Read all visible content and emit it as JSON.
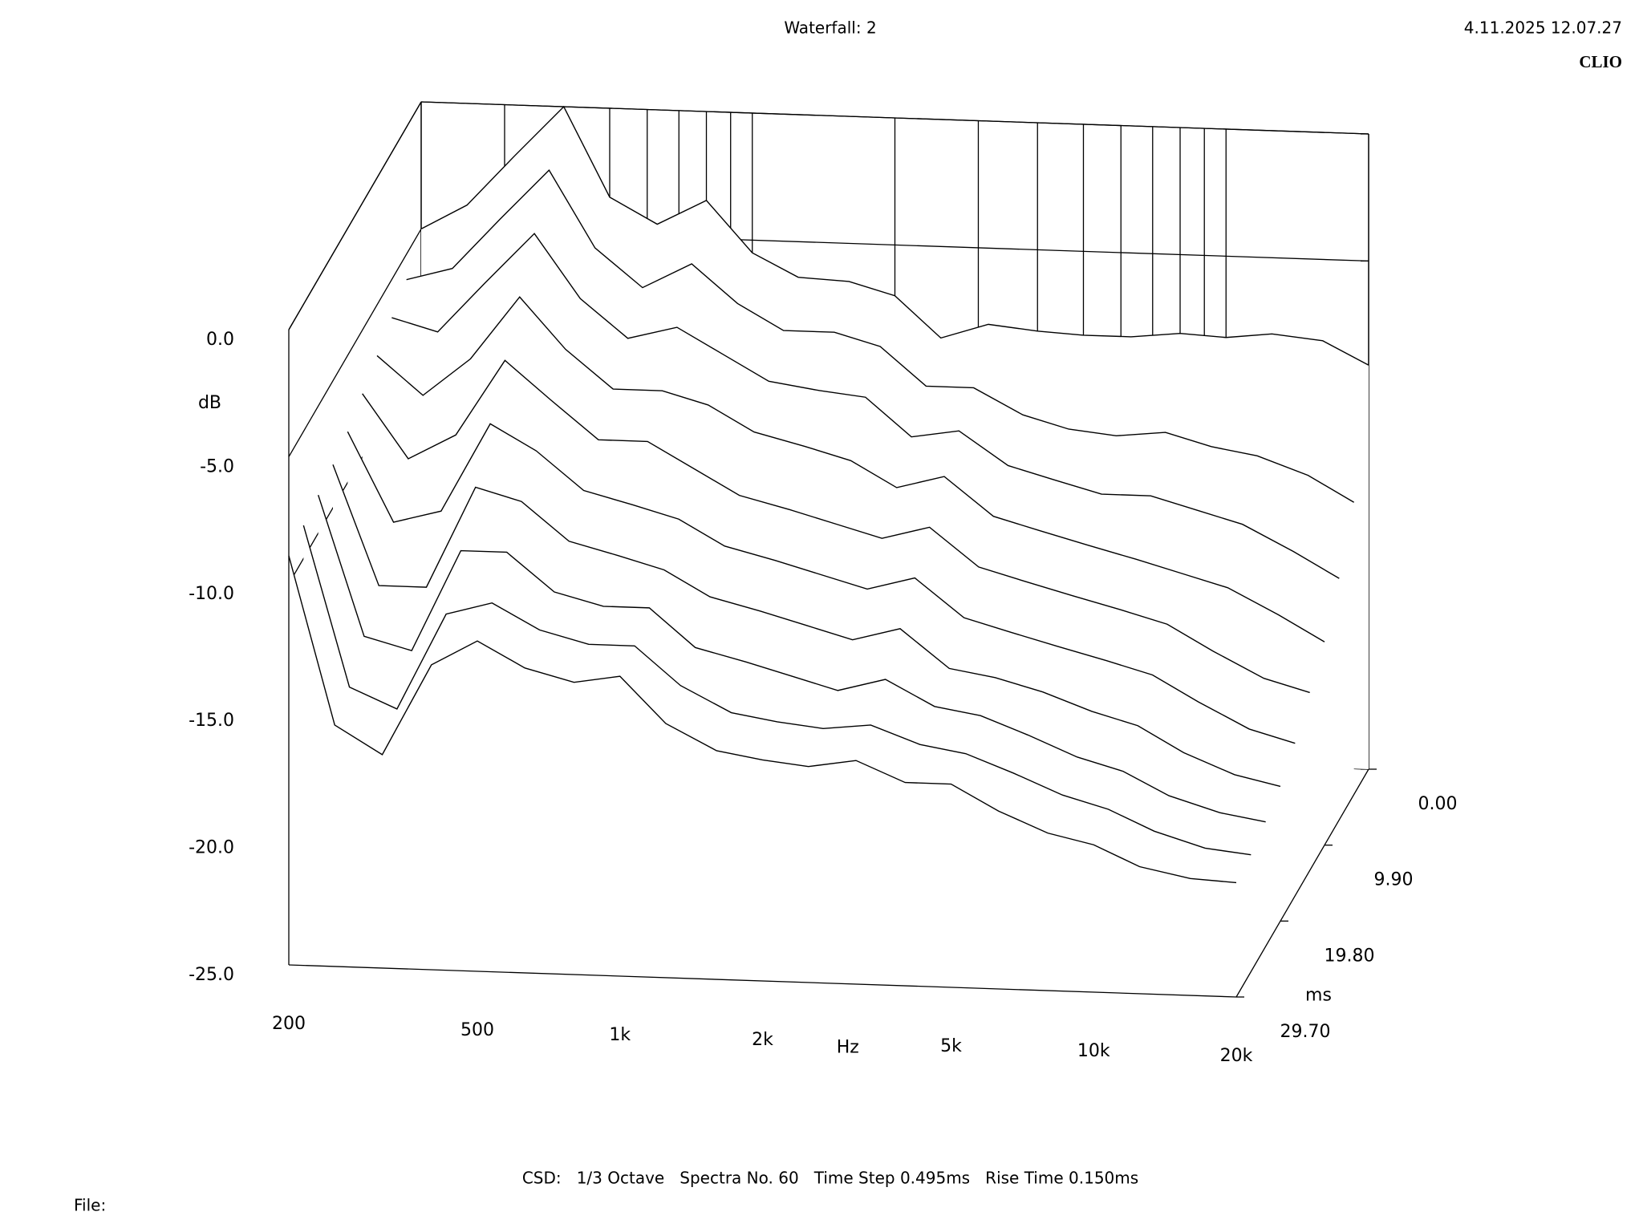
{
  "chart_data": {
    "type": "waterfall",
    "title": "Waterfall: 2",
    "timestamp": "4.11.2025 12.07.27",
    "brand": "CLIO",
    "x_label": "Hz",
    "y_label": "dB",
    "z_label": "ms",
    "footer": "CSD:   1/3 Octave   Spectra No. 60   Time Step 0.495ms   Rise Time 0.150ms",
    "file_label": "File:",
    "xscale": "log",
    "xlim": [
      200,
      20000
    ],
    "xticks": [
      200,
      500,
      {
        "value": 1000,
        "label": "1k"
      },
      {
        "value": 2000,
        "label": "2k"
      },
      {
        "value": 5000,
        "label": "5k"
      },
      {
        "value": 10000,
        "label": "10k"
      },
      {
        "value": 20000,
        "label": "20k"
      }
    ],
    "xminor": [
      300,
      400,
      600,
      700,
      800,
      900,
      3000,
      4000,
      6000,
      7000,
      8000,
      9000
    ],
    "ylim": [
      -25,
      0
    ],
    "yticks": [
      {
        "value": 0,
        "label": "0.0"
      },
      {
        "value": -5,
        "label": "-5.0"
      },
      {
        "value": -10,
        "label": "-10.0"
      },
      {
        "value": -15,
        "label": "-15.0"
      },
      {
        "value": -20,
        "label": "-20.0"
      },
      {
        "value": -25,
        "label": "-25.0"
      }
    ],
    "zlim": [
      0,
      29.7
    ],
    "zticks": [
      {
        "value": 0,
        "label": "0.00"
      },
      {
        "value": 9.9,
        "label": "9.90"
      },
      {
        "value": 19.8,
        "label": "19.80"
      },
      {
        "value": 29.7,
        "label": "29.70"
      }
    ],
    "color": "#000000",
    "x": [
      200,
      250,
      315,
      400,
      500,
      630,
      800,
      1000,
      1250,
      1600,
      2000,
      2500,
      3150,
      4000,
      5000,
      6300,
      8000,
      10000,
      12500,
      16000,
      20000
    ],
    "spectra": [
      {
        "t": 0,
        "values": [
          -5,
          -4,
          -2,
          0,
          -3.5,
          -4.5,
          -3.5,
          -5.5,
          -6.4,
          -6.5,
          -7,
          -8.6,
          -8,
          -8.2,
          -8.3,
          -8.3,
          -8.1,
          -8.2,
          -8,
          -8.2,
          -9.1
        ]
      },
      {
        "t": 3.3,
        "values": [
          -6,
          -5.5,
          -3.5,
          -1.5,
          -4.5,
          -6,
          -5,
          -6.5,
          -7.5,
          -7.5,
          -8,
          -9.5,
          -9.5,
          -10.5,
          -11,
          -11.2,
          -11,
          -11.5,
          -11.8,
          -12.5,
          -13.5
        ]
      },
      {
        "t": 6.6,
        "values": [
          -6.5,
          -7,
          -5,
          -3,
          -5.5,
          -7,
          -6.5,
          -7.5,
          -8.5,
          -8.8,
          -9,
          -10.5,
          -10.2,
          -11.5,
          -12,
          -12.5,
          -12.5,
          -13,
          -13.5,
          -14.5,
          -15.5
        ]
      },
      {
        "t": 9.9,
        "values": [
          -7,
          -8.5,
          -7,
          -4.5,
          -6.5,
          -8,
          -8,
          -8.5,
          -9.5,
          -10,
          -10.5,
          -11.5,
          -11,
          -12.5,
          -13,
          -13.5,
          -14,
          -14.5,
          -15,
          -16,
          -17
        ]
      },
      {
        "t": 13.2,
        "values": [
          -7.5,
          -10,
          -9,
          -6,
          -7.5,
          -9,
          -9,
          -10,
          -11,
          -11.5,
          -12,
          -12.5,
          -12,
          -13.5,
          -14,
          -14.5,
          -15,
          -15.5,
          -16.5,
          -17.5,
          -18
        ]
      },
      {
        "t": 16.5,
        "values": [
          -8,
          -11.5,
          -11,
          -7.5,
          -8.5,
          -10,
          -10.5,
          -11,
          -12,
          -12.5,
          -13,
          -13.5,
          -13,
          -14.5,
          -15,
          -15.5,
          -16,
          -16.5,
          -17.5,
          -18.5,
          -19
        ]
      },
      {
        "t": 19.8,
        "values": [
          -8.3,
          -13,
          -13,
          -9,
          -9.5,
          -11,
          -11.5,
          -12,
          -13,
          -13.5,
          -14,
          -14.5,
          -14,
          -15.5,
          -15.8,
          -16.3,
          -17,
          -17.5,
          -18.5,
          -19.3,
          -19.7
        ]
      },
      {
        "t": 23.1,
        "values": [
          -8.5,
          -14,
          -14.5,
          -10.5,
          -10.5,
          -12,
          -12.5,
          -12.5,
          -14,
          -14.5,
          -15,
          -15.5,
          -15,
          -16,
          -16.3,
          -17,
          -17.8,
          -18.3,
          -19.2,
          -19.8,
          -20.1
        ]
      },
      {
        "t": 26.4,
        "values": [
          -8.7,
          -15,
          -15.8,
          -12,
          -11.5,
          -12.5,
          -13,
          -13,
          -14.5,
          -15.5,
          -15.8,
          -16,
          -15.8,
          -16.5,
          -16.8,
          -17.5,
          -18.3,
          -18.8,
          -19.6,
          -20.2,
          -20.4
        ]
      },
      {
        "t": 29.7,
        "values": [
          -8.9,
          -15.5,
          -16.6,
          -13,
          -12,
          -13,
          -13.5,
          -13.2,
          -15,
          -16,
          -16.3,
          -16.5,
          -16.2,
          -17,
          -17,
          -18,
          -18.8,
          -19.2,
          -20,
          -20.4,
          -20.5
        ]
      }
    ]
  }
}
